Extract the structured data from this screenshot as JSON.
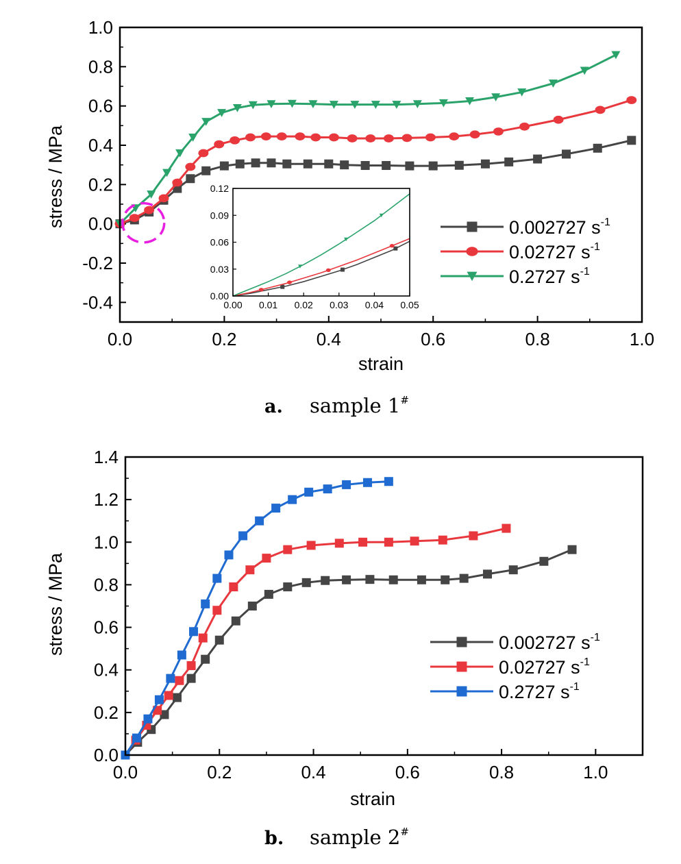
{
  "chart_data": [
    {
      "type": "line",
      "caption_letter": "a.",
      "caption_text": "sample 1",
      "caption_superscript": "#",
      "xlabel": "strain",
      "ylabel": "stress / MPa",
      "xlim": [
        0.0,
        1.0
      ],
      "ylim": [
        -0.5,
        1.0
      ],
      "xticks": [
        "0.0",
        "0.2",
        "0.4",
        "0.6",
        "0.8",
        "1.0"
      ],
      "yticks": [
        "-0.4",
        "-0.2",
        "0.0",
        "0.2",
        "0.4",
        "0.6",
        "0.8",
        "1.0"
      ],
      "legend_position": "right",
      "series": [
        {
          "name": "0.002727 s",
          "name_sup": "-1",
          "color": "#454545",
          "marker": "square",
          "x": [
            0.0,
            0.028,
            0.056,
            0.084,
            0.11,
            0.135,
            0.165,
            0.2,
            0.23,
            0.26,
            0.29,
            0.32,
            0.36,
            0.4,
            0.43,
            0.47,
            0.51,
            0.555,
            0.6,
            0.65,
            0.7,
            0.745,
            0.8,
            0.855,
            0.915,
            0.98
          ],
          "y": [
            0.0,
            0.02,
            0.06,
            0.12,
            0.18,
            0.23,
            0.27,
            0.295,
            0.305,
            0.31,
            0.31,
            0.305,
            0.305,
            0.305,
            0.3,
            0.297,
            0.297,
            0.295,
            0.295,
            0.298,
            0.305,
            0.315,
            0.33,
            0.355,
            0.385,
            0.425
          ]
        },
        {
          "name": "0.02727 s",
          "name_sup": "-1",
          "color": "#e8383d",
          "marker": "circle",
          "x": [
            0.0,
            0.028,
            0.056,
            0.084,
            0.11,
            0.135,
            0.16,
            0.19,
            0.22,
            0.25,
            0.28,
            0.31,
            0.345,
            0.375,
            0.41,
            0.445,
            0.48,
            0.515,
            0.55,
            0.595,
            0.64,
            0.68,
            0.725,
            0.775,
            0.84,
            0.92,
            0.98
          ],
          "y": [
            0.0,
            0.03,
            0.07,
            0.13,
            0.21,
            0.29,
            0.36,
            0.405,
            0.425,
            0.44,
            0.445,
            0.445,
            0.445,
            0.44,
            0.44,
            0.435,
            0.435,
            0.435,
            0.437,
            0.44,
            0.445,
            0.455,
            0.47,
            0.495,
            0.53,
            0.58,
            0.63
          ]
        },
        {
          "name": "0.2727 s",
          "name_sup": "-1",
          "color": "#2aa36b",
          "marker": "triangle-down",
          "x": [
            0.0,
            0.03,
            0.06,
            0.09,
            0.115,
            0.14,
            0.165,
            0.195,
            0.225,
            0.255,
            0.29,
            0.33,
            0.37,
            0.41,
            0.45,
            0.49,
            0.53,
            0.57,
            0.62,
            0.67,
            0.72,
            0.77,
            0.83,
            0.89,
            0.95
          ],
          "y": [
            0.0,
            0.08,
            0.15,
            0.26,
            0.36,
            0.44,
            0.52,
            0.565,
            0.59,
            0.605,
            0.61,
            0.612,
            0.61,
            0.607,
            0.607,
            0.607,
            0.607,
            0.61,
            0.615,
            0.625,
            0.645,
            0.67,
            0.715,
            0.78,
            0.86
          ]
        }
      ],
      "inset": {
        "xlim": [
          0.0,
          0.05
        ],
        "ylim": [
          0.0,
          0.12
        ],
        "xticks": [
          "0.00",
          "0.01",
          "0.02",
          "0.03",
          "0.04",
          "0.05"
        ],
        "yticks": [
          "0.00",
          "0.03",
          "0.06",
          "0.09",
          "0.12"
        ],
        "series": [
          {
            "color": "#454545",
            "marker": "square",
            "x": [
              0.0,
              0.005,
              0.01,
              0.015,
              0.02,
              0.025,
              0.03,
              0.035,
              0.04,
              0.045,
              0.05
            ],
            "y": [
              0.0,
              0.003,
              0.007,
              0.011,
              0.016,
              0.022,
              0.028,
              0.035,
              0.043,
              0.051,
              0.061
            ],
            "mark_x": [
              0.014,
              0.031,
              0.046
            ]
          },
          {
            "color": "#e8383d",
            "marker": "circle",
            "x": [
              0.0,
              0.005,
              0.01,
              0.015,
              0.02,
              0.025,
              0.03,
              0.035,
              0.04,
              0.045,
              0.05
            ],
            "y": [
              0.0,
              0.004,
              0.009,
              0.014,
              0.02,
              0.026,
              0.033,
              0.04,
              0.048,
              0.056,
              0.064
            ],
            "mark_x": [
              0.008,
              0.016,
              0.027,
              0.045
            ]
          },
          {
            "color": "#2aa36b",
            "marker": "triangle-down",
            "x": [
              0.0,
              0.005,
              0.01,
              0.015,
              0.02,
              0.025,
              0.03,
              0.035,
              0.04,
              0.045,
              0.05
            ],
            "y": [
              0.0,
              0.008,
              0.016,
              0.025,
              0.035,
              0.046,
              0.058,
              0.071,
              0.084,
              0.099,
              0.114
            ],
            "mark_x": [
              0.019,
              0.032,
              0.042
            ]
          }
        ]
      },
      "highlight": {
        "shape": "dashed-ellipse",
        "color": "#e81ee0",
        "center": [
          0.045,
          0.005
        ],
        "radii": [
          0.04,
          0.1
        ]
      }
    },
    {
      "type": "line",
      "caption_letter": "b.",
      "caption_text": "sample 2",
      "caption_superscript": "#",
      "xlabel": "strain",
      "ylabel": "stress / MPa",
      "xlim": [
        0.0,
        1.1
      ],
      "ylim": [
        0.0,
        1.4
      ],
      "xticks": [
        "0.0",
        "0.2",
        "0.4",
        "0.6",
        "0.8",
        "1.0"
      ],
      "yticks": [
        "0.0",
        "0.2",
        "0.4",
        "0.6",
        "0.8",
        "1.0",
        "1.2",
        "1.4"
      ],
      "legend_position": "right",
      "series": [
        {
          "name": "0.002727 s",
          "name_sup": "-1",
          "color": "#454545",
          "marker": "square",
          "x": [
            0.0,
            0.026,
            0.055,
            0.083,
            0.11,
            0.14,
            0.17,
            0.2,
            0.235,
            0.27,
            0.305,
            0.345,
            0.385,
            0.425,
            0.47,
            0.52,
            0.57,
            0.63,
            0.68,
            0.72,
            0.77,
            0.825,
            0.89,
            0.95
          ],
          "y": [
            0.0,
            0.06,
            0.12,
            0.19,
            0.27,
            0.36,
            0.45,
            0.54,
            0.63,
            0.7,
            0.755,
            0.79,
            0.81,
            0.82,
            0.823,
            0.825,
            0.823,
            0.823,
            0.823,
            0.83,
            0.85,
            0.87,
            0.91,
            0.965
          ]
        },
        {
          "name": "0.02727 s",
          "name_sup": "-1",
          "color": "#e8383d",
          "marker": "square",
          "x": [
            0.0,
            0.022,
            0.045,
            0.068,
            0.092,
            0.115,
            0.14,
            0.165,
            0.195,
            0.23,
            0.265,
            0.3,
            0.345,
            0.395,
            0.455,
            0.505,
            0.56,
            0.615,
            0.675,
            0.74,
            0.81
          ],
          "y": [
            0.0,
            0.07,
            0.14,
            0.21,
            0.28,
            0.35,
            0.42,
            0.55,
            0.68,
            0.79,
            0.87,
            0.925,
            0.965,
            0.985,
            0.995,
            1.0,
            1.0,
            1.005,
            1.01,
            1.03,
            1.065
          ]
        },
        {
          "name": "0.2727 s",
          "name_sup": "-1",
          "color": "#1f6bd1",
          "marker": "square",
          "x": [
            0.0,
            0.024,
            0.048,
            0.072,
            0.096,
            0.12,
            0.145,
            0.17,
            0.195,
            0.22,
            0.25,
            0.285,
            0.32,
            0.355,
            0.39,
            0.43,
            0.47,
            0.515,
            0.56
          ],
          "y": [
            0.0,
            0.08,
            0.17,
            0.26,
            0.36,
            0.47,
            0.58,
            0.71,
            0.83,
            0.94,
            1.03,
            1.1,
            1.16,
            1.2,
            1.235,
            1.25,
            1.27,
            1.28,
            1.285
          ]
        }
      ]
    }
  ]
}
